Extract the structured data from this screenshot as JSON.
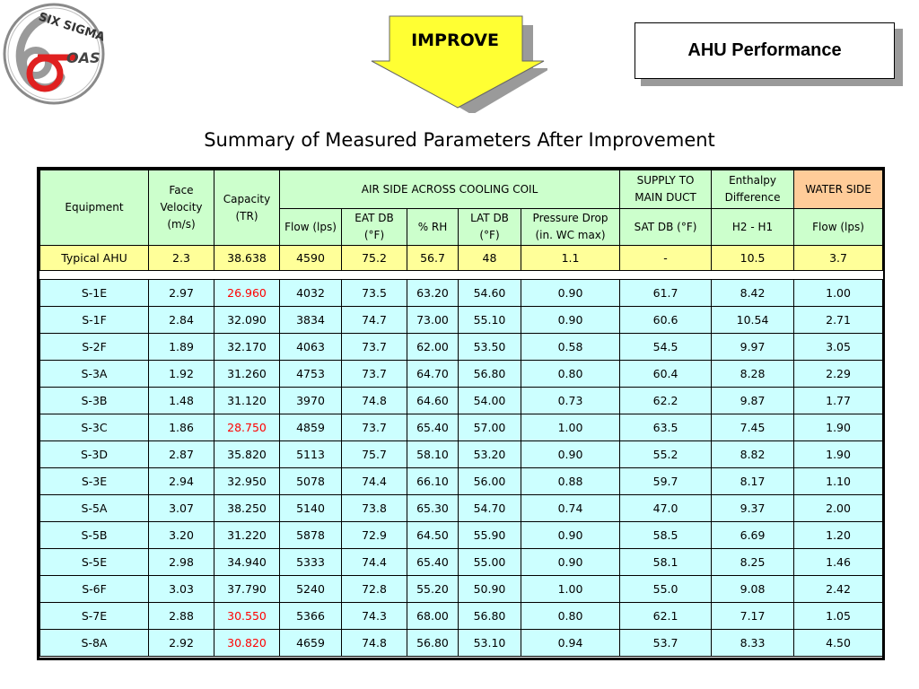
{
  "logo": {
    "top_text": "SIX SIGMA",
    "side_text": "OAS"
  },
  "phase_label": "IMPROVE",
  "slide_title": "AHU Performance",
  "table_title": "Summary of Measured Parameters After Improvement",
  "colors": {
    "header_green": "#ccffcc",
    "water_orange": "#ffcc99",
    "typical_yellow": "#ffff99",
    "row_cyan": "#ccffff",
    "highlight_red": "#ff0000"
  },
  "headers": {
    "equipment": "Equipment",
    "face_velocity": [
      "Face",
      "Velocity",
      "(m/s)"
    ],
    "capacity": [
      "Capacity",
      "(TR)"
    ],
    "air_side": "AIR SIDE ACROSS COOLING COIL",
    "supply": [
      "SUPPLY TO",
      "MAIN DUCT"
    ],
    "enthalpy": [
      "Enthalpy",
      "Difference"
    ],
    "water_side": "WATER SIDE",
    "flow_lps": "Flow (lps)",
    "eat_db": [
      "EAT DB",
      "(°F)"
    ],
    "rh": "% RH",
    "lat_db": [
      "LAT DB",
      "(°F)"
    ],
    "pressure_drop": [
      "Pressure Drop",
      "(in. WC max)"
    ],
    "sat_db": "SAT DB (°F)",
    "h2_h1": "H2 - H1",
    "water_flow": "Flow (lps)"
  },
  "typical": [
    "Typical AHU",
    "2.3",
    "38.638",
    "4590",
    "75.2",
    "56.7",
    "48",
    "1.1",
    "-",
    "10.5",
    "3.7"
  ],
  "rows": [
    {
      "cells": [
        "S-1E",
        "2.97",
        "26.960",
        "4032",
        "73.5",
        "63.20",
        "54.60",
        "0.90",
        "61.7",
        "8.42",
        "1.00"
      ],
      "red_capacity": true
    },
    {
      "cells": [
        "S-1F",
        "2.84",
        "32.090",
        "3834",
        "74.7",
        "73.00",
        "55.10",
        "0.90",
        "60.6",
        "10.54",
        "2.71"
      ],
      "red_capacity": false
    },
    {
      "cells": [
        "S-2F",
        "1.89",
        "32.170",
        "4063",
        "73.7",
        "62.00",
        "53.50",
        "0.58",
        "54.5",
        "9.97",
        "3.05"
      ],
      "red_capacity": false
    },
    {
      "cells": [
        "S-3A",
        "1.92",
        "31.260",
        "4753",
        "73.7",
        "64.70",
        "56.80",
        "0.80",
        "60.4",
        "8.28",
        "2.29"
      ],
      "red_capacity": false
    },
    {
      "cells": [
        "S-3B",
        "1.48",
        "31.120",
        "3970",
        "74.8",
        "64.60",
        "54.00",
        "0.73",
        "62.2",
        "9.87",
        "1.77"
      ],
      "red_capacity": false
    },
    {
      "cells": [
        "S-3C",
        "1.86",
        "28.750",
        "4859",
        "73.7",
        "65.40",
        "57.00",
        "1.00",
        "63.5",
        "7.45",
        "1.90"
      ],
      "red_capacity": true
    },
    {
      "cells": [
        "S-3D",
        "2.87",
        "35.820",
        "5113",
        "75.7",
        "58.10",
        "53.20",
        "0.90",
        "55.2",
        "8.82",
        "1.90"
      ],
      "red_capacity": false
    },
    {
      "cells": [
        "S-3E",
        "2.94",
        "32.950",
        "5078",
        "74.4",
        "66.10",
        "56.00",
        "0.88",
        "59.7",
        "8.17",
        "1.10"
      ],
      "red_capacity": false
    },
    {
      "cells": [
        "S-5A",
        "3.07",
        "38.250",
        "5140",
        "73.8",
        "65.30",
        "54.70",
        "0.74",
        "47.0",
        "9.37",
        "2.00"
      ],
      "red_capacity": false
    },
    {
      "cells": [
        "S-5B",
        "3.20",
        "31.220",
        "5878",
        "72.9",
        "64.50",
        "55.90",
        "0.90",
        "58.5",
        "6.69",
        "1.20"
      ],
      "red_capacity": false
    },
    {
      "cells": [
        "S-5E",
        "2.98",
        "34.940",
        "5333",
        "74.4",
        "65.40",
        "55.00",
        "0.90",
        "58.1",
        "8.25",
        "1.46"
      ],
      "red_capacity": false
    },
    {
      "cells": [
        "S-6F",
        "3.03",
        "37.790",
        "5240",
        "72.8",
        "55.20",
        "50.90",
        "1.00",
        "55.0",
        "9.08",
        "2.42"
      ],
      "red_capacity": false
    },
    {
      "cells": [
        "S-7E",
        "2.88",
        "30.550",
        "5366",
        "74.3",
        "68.00",
        "56.80",
        "0.80",
        "62.1",
        "7.17",
        "1.05"
      ],
      "red_capacity": true
    },
    {
      "cells": [
        "S-8A",
        "2.92",
        "30.820",
        "4659",
        "74.8",
        "56.80",
        "53.10",
        "0.94",
        "53.7",
        "8.33",
        "4.50"
      ],
      "red_capacity": true
    }
  ]
}
